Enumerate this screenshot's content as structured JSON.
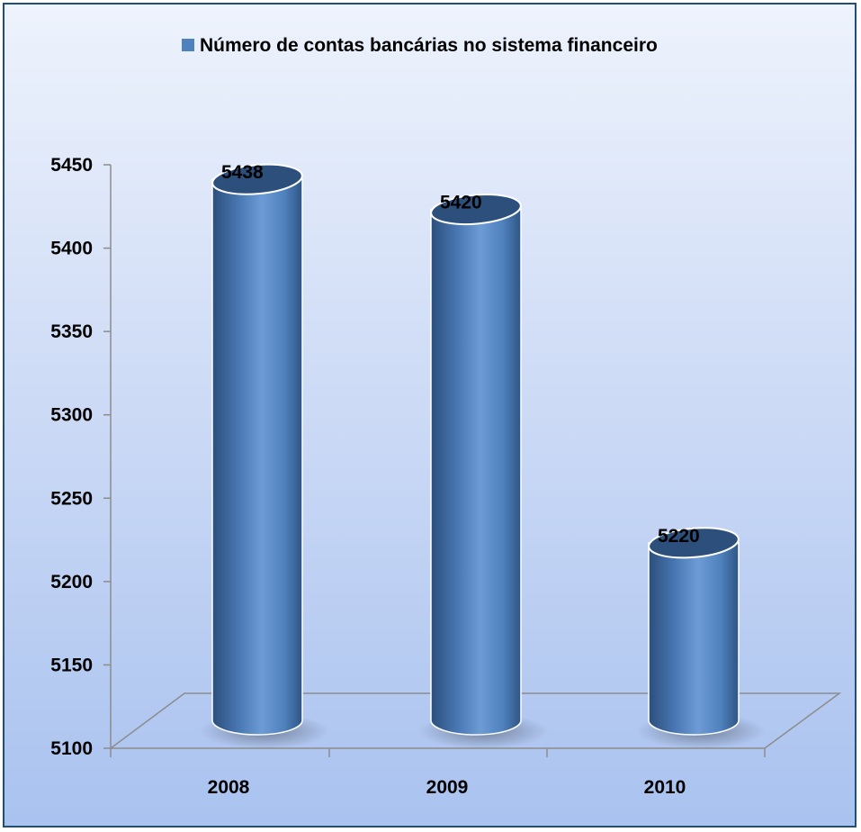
{
  "chart_data": {
    "type": "bar",
    "categories": [
      "2008",
      "2009",
      "2010"
    ],
    "series": [
      {
        "name": "Número de contas bancárias no sistema financeiro",
        "values": [
          5438,
          5420,
          5220
        ]
      }
    ],
    "data_labels": [
      "5438",
      "5420",
      "5220"
    ],
    "yticks": [
      "5100",
      "5150",
      "5200",
      "5250",
      "5300",
      "5350",
      "5400",
      "5450"
    ],
    "ylim": [
      5100,
      5450
    ],
    "grid": false,
    "legend_position": "top-center",
    "bar_style": "3d-cylinder",
    "colors": {
      "bar": "#4f81bd",
      "bar_dark": "#2c4f7c",
      "bar_light": "#6d9bd5",
      "axis": "#8c8c8c",
      "legend_marker": "#4f81bd"
    }
  }
}
